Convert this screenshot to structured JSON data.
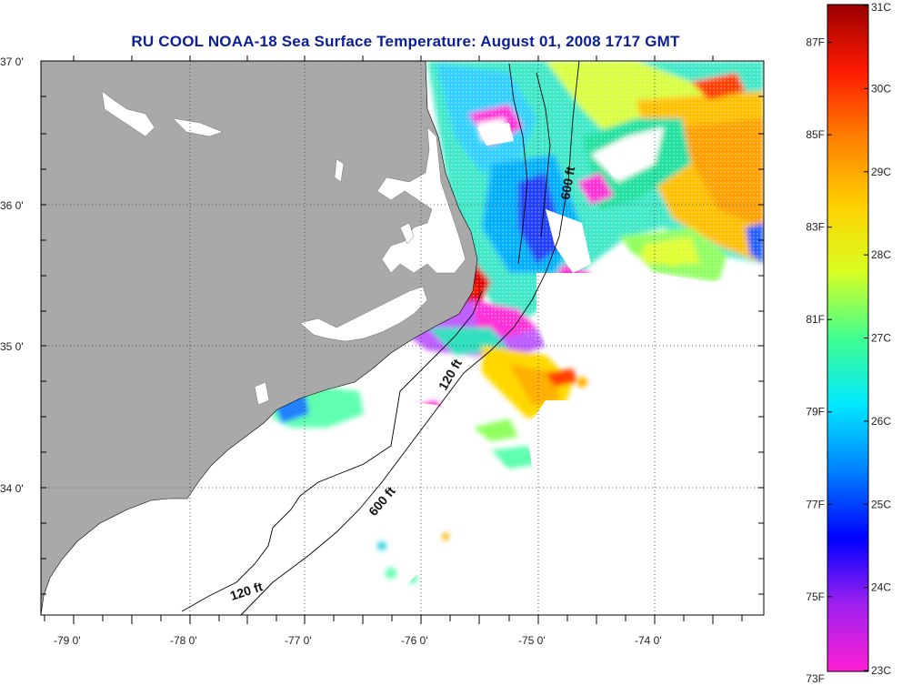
{
  "title": "RU COOL  NOAA-18  Sea Surface Temperature:  August 01, 2008 1717 GMT",
  "lat_labels": [
    "37 0'",
    "36 0'",
    "35 0'",
    "34 0'"
  ],
  "lon_labels": [
    "-79 0'",
    "-78 0'",
    "-77 0'",
    "-76 0'",
    "-75 0'",
    "-74 0'"
  ],
  "contours": {
    "shelf_inner": "120 ft",
    "shelf_outer": "600 ft",
    "label_600_north": "600 ft",
    "label_120_mid": "120 ft",
    "label_600_south": "600 ft",
    "label_120_south": "120 ft"
  },
  "colorbar": {
    "celsius": [
      "31C",
      "30C",
      "29C",
      "28C",
      "27C",
      "26C",
      "25C",
      "24C",
      "23C"
    ],
    "fahrenheit": [
      "87F",
      "85F",
      "83F",
      "81F",
      "79F",
      "77F",
      "75F",
      "73F"
    ],
    "gradient": [
      "#ff1fd2",
      "#a020f0",
      "#0000ff",
      "#0080ff",
      "#00e8ff",
      "#40ff90",
      "#d8ff20",
      "#ffd000",
      "#ff8000",
      "#ff1a00",
      "#9a0000"
    ]
  },
  "colors": {
    "land": "#a9a9a9",
    "title": "#0b1f9a",
    "ocean_missing": "#ffffff"
  }
}
